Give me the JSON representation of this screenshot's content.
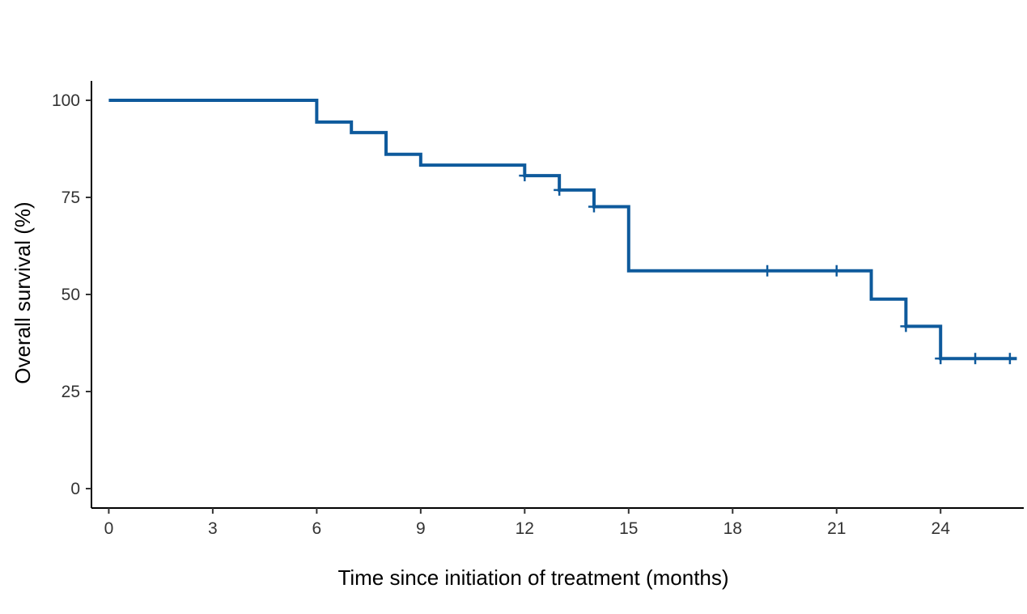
{
  "chart_data": {
    "type": "line",
    "subtype": "kaplan-meier-step",
    "title": "",
    "xlabel": "Time since initiation of treatment (months)",
    "ylabel": "Overall survival (%)",
    "xlim": [
      -0.5,
      26.4
    ],
    "ylim": [
      -5,
      105
    ],
    "xticks": [
      0,
      3,
      6,
      9,
      12,
      15,
      18,
      21,
      24
    ],
    "yticks": [
      0,
      25,
      50,
      75,
      100
    ],
    "grid": false,
    "legend": "none",
    "color": "#0e5a9c",
    "series": [
      {
        "name": "Overall survival",
        "steps": [
          {
            "x": 0,
            "y": 100
          },
          {
            "x": 6,
            "y": 94.4
          },
          {
            "x": 7,
            "y": 91.7
          },
          {
            "x": 8,
            "y": 86.1
          },
          {
            "x": 9,
            "y": 83.3
          },
          {
            "x": 12,
            "y": 80.6
          },
          {
            "x": 13,
            "y": 76.9
          },
          {
            "x": 14,
            "y": 72.6
          },
          {
            "x": 15,
            "y": 56.1
          },
          {
            "x": 22,
            "y": 48.8
          },
          {
            "x": 23,
            "y": 41.8
          },
          {
            "x": 24,
            "y": 33.5
          }
        ],
        "end_x": 26.2,
        "censored": [
          {
            "x": 12.0,
            "y": 80.6
          },
          {
            "x": 13.0,
            "y": 76.9
          },
          {
            "x": 14.0,
            "y": 72.6
          },
          {
            "x": 19.0,
            "y": 56.1
          },
          {
            "x": 21.0,
            "y": 56.1
          },
          {
            "x": 23.0,
            "y": 41.8
          },
          {
            "x": 24.0,
            "y": 33.5
          },
          {
            "x": 25.0,
            "y": 33.5
          },
          {
            "x": 26.0,
            "y": 33.5
          }
        ]
      }
    ]
  }
}
